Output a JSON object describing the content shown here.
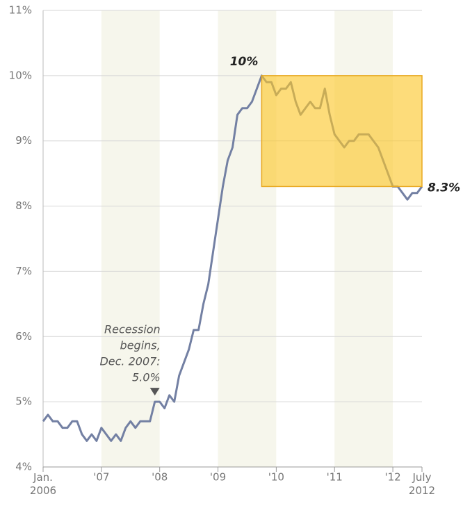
{
  "chart_data": {
    "type": "line",
    "categories": [
      "Jan. 2006",
      null,
      null,
      null,
      null,
      null,
      null,
      null,
      null,
      null,
      null,
      null,
      "'07",
      null,
      null,
      null,
      null,
      null,
      null,
      null,
      null,
      null,
      null,
      null,
      "'08",
      null,
      null,
      null,
      null,
      null,
      null,
      null,
      null,
      null,
      null,
      null,
      "'09",
      null,
      null,
      null,
      null,
      null,
      null,
      null,
      null,
      null,
      null,
      null,
      "'10",
      null,
      null,
      null,
      null,
      null,
      null,
      null,
      null,
      null,
      null,
      null,
      "'11",
      null,
      null,
      null,
      null,
      null,
      null,
      null,
      null,
      null,
      null,
      null,
      "'12",
      null,
      null,
      null,
      null,
      null,
      "July 2012"
    ],
    "series": [
      {
        "color": "#7380a3",
        "values": [
          4.7,
          4.8,
          4.7,
          4.7,
          4.6,
          4.6,
          4.7,
          4.7,
          4.5,
          4.4,
          4.5,
          4.4,
          4.6,
          4.5,
          4.4,
          4.5,
          4.4,
          4.6,
          4.7,
          4.6,
          4.7,
          4.7,
          4.7,
          5.0,
          5.0,
          4.9,
          5.1,
          5.0,
          5.4,
          5.6,
          5.8,
          6.1,
          6.1,
          6.5,
          6.8,
          7.3,
          7.8,
          8.3,
          8.7,
          8.9,
          9.4,
          9.5,
          9.5,
          9.6,
          9.8,
          10.0,
          9.9,
          9.9,
          9.7,
          9.8,
          9.8,
          9.9,
          9.6,
          9.4,
          9.5,
          9.6,
          9.5,
          9.5,
          9.8,
          9.4,
          9.1,
          9.0,
          8.9,
          9.0,
          9.0,
          9.1,
          9.1,
          9.1,
          9.0,
          8.9,
          8.7,
          8.5,
          8.3,
          8.3,
          8.2,
          8.1,
          8.2,
          8.2,
          8.3
        ]
      }
    ],
    "ylim": [
      4,
      11
    ],
    "yticks": [
      {
        "value": 4,
        "label": "4%"
      },
      {
        "value": 5,
        "label": "5%"
      },
      {
        "value": 6,
        "label": "6%"
      },
      {
        "value": 7,
        "label": "7%"
      },
      {
        "value": 8,
        "label": "8%"
      },
      {
        "value": 9,
        "label": "9%"
      },
      {
        "value": 10,
        "label": "10%"
      },
      {
        "value": 11,
        "label": "11%"
      }
    ],
    "grid": true,
    "annotations": [
      {
        "lines": [
          "10%"
        ],
        "index": 45
      },
      {
        "lines": [
          "8.3%"
        ],
        "index": 78
      },
      {
        "lines": [
          "Recession",
          "begins,",
          "Dec. 2007:",
          "5.0%"
        ],
        "index": 23
      }
    ]
  }
}
